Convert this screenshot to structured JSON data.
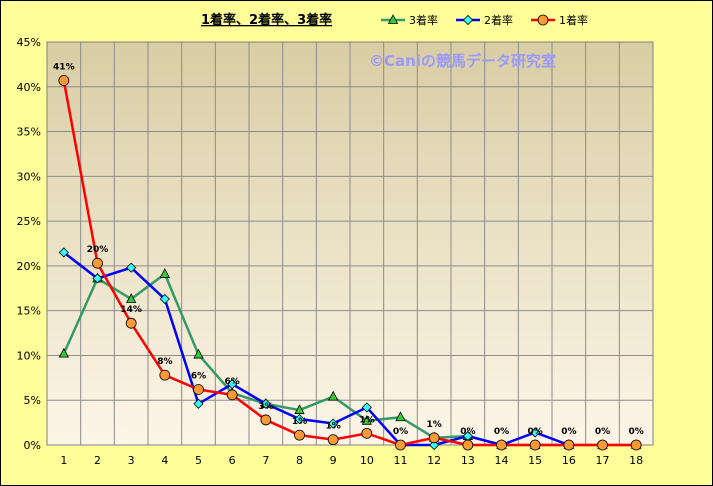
{
  "colors": {
    "background": "#ffff99",
    "plot_top": "#d9cda4",
    "plot_bottom": "#fdf6e8",
    "grid": "#8c8c8c",
    "series_3": "#339966",
    "series_3_marker": "#33cc33",
    "series_2": "#0000ff",
    "series_2_marker": "#33ffff",
    "series_1": "#ff0000",
    "series_1_marker": "#ff9933",
    "watermark": "#9999ff"
  },
  "watermark": "©Caniの競馬データ研究室",
  "chart_data": {
    "type": "line",
    "title": "1着率、2着率、3着率",
    "xlabel": "",
    "ylabel": "",
    "categories": [
      "1",
      "2",
      "3",
      "4",
      "5",
      "6",
      "7",
      "8",
      "9",
      "10",
      "11",
      "12",
      "13",
      "14",
      "15",
      "16",
      "17",
      "18"
    ],
    "ylim": [
      0,
      45
    ],
    "yticks": [
      "0%",
      "5%",
      "10%",
      "15%",
      "20%",
      "25%",
      "30%",
      "35%",
      "40%",
      "45%"
    ],
    "grid": true,
    "legend_position": "top-right",
    "series": [
      {
        "name": "3着率",
        "key": "s3",
        "marker": "triangle",
        "values": [
          10.2,
          18.6,
          16.3,
          19.1,
          10.1,
          5.8,
          4.6,
          3.9,
          5.4,
          2.7,
          3.1,
          0.8,
          1.0,
          0,
          0,
          0,
          0,
          0
        ],
        "labels": []
      },
      {
        "name": "2着率",
        "key": "s2",
        "marker": "diamond",
        "values": [
          21.5,
          18.6,
          19.8,
          16.3,
          4.6,
          6.8,
          4.6,
          2.9,
          2.4,
          4.2,
          0,
          0,
          1.0,
          0,
          1.4,
          0,
          null,
          null
        ],
        "labels": []
      },
      {
        "name": "1着率",
        "key": "s1",
        "marker": "circle",
        "values": [
          40.7,
          20.3,
          13.6,
          7.8,
          6.2,
          5.6,
          2.8,
          1.1,
          0.6,
          1.3,
          0,
          0.8,
          0,
          0,
          0,
          0,
          0,
          0
        ],
        "labels": [
          "41%",
          "20%",
          "14%",
          "8%",
          "6%",
          "6%",
          "3%",
          "1%",
          "1%",
          "1%",
          "0%",
          "1%",
          "0%",
          "0%",
          "0%",
          "0%",
          "0%",
          "0%"
        ]
      }
    ]
  }
}
